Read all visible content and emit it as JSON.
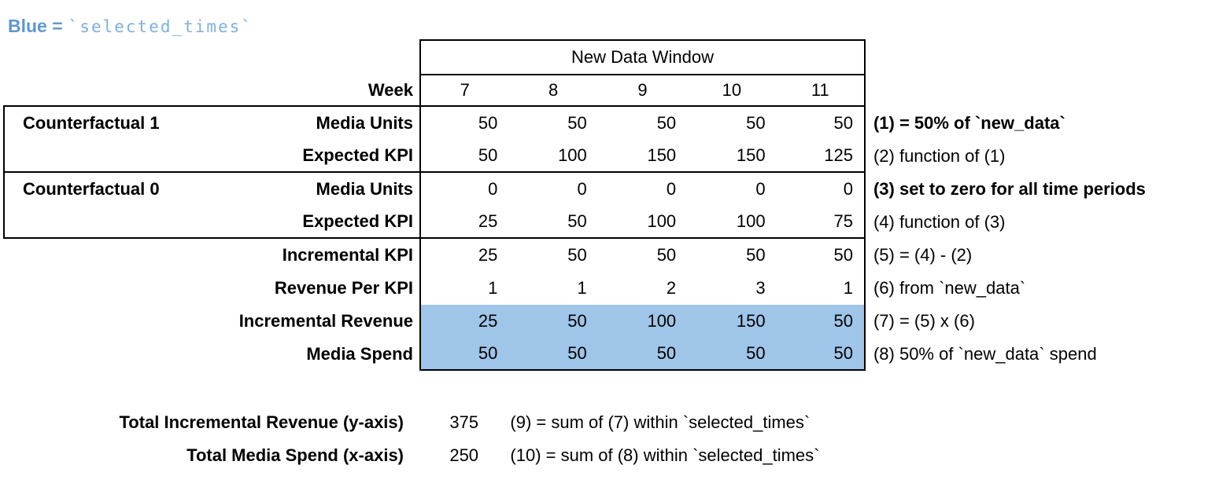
{
  "legend": {
    "prefix": "Blue =",
    "code": "`selected_times`"
  },
  "colors": {
    "highlight": "#9FC5E8",
    "legend_prefix": "#5E97D3",
    "legend_code": "#7FB0DF",
    "border": "#000000"
  },
  "table": {
    "window_header": "New Data Window",
    "week_label": "Week",
    "weeks": [
      "7",
      "8",
      "9",
      "10",
      "11"
    ],
    "rows": [
      {
        "group": "Counterfactual 1",
        "label": "Media Units",
        "values": [
          "50",
          "50",
          "50",
          "50",
          "50"
        ],
        "note": "(1) = 50% of `new_data`",
        "note_bold": true,
        "highlight": false
      },
      {
        "group": "",
        "label": "Expected KPI",
        "values": [
          "50",
          "100",
          "150",
          "150",
          "125"
        ],
        "note": "(2) function of (1)",
        "note_bold": false,
        "highlight": false
      },
      {
        "group": "Counterfactual 0",
        "label": "Media Units",
        "values": [
          "0",
          "0",
          "0",
          "0",
          "0"
        ],
        "note": "(3) set to zero for all time periods",
        "note_bold": true,
        "highlight": false
      },
      {
        "group": "",
        "label": "Expected KPI",
        "values": [
          "25",
          "50",
          "100",
          "100",
          "75"
        ],
        "note": "(4) function of (3)",
        "note_bold": false,
        "highlight": false
      },
      {
        "group": "",
        "label": "Incremental KPI",
        "values": [
          "25",
          "50",
          "50",
          "50",
          "50"
        ],
        "note": "(5) = (4) - (2)",
        "note_bold": false,
        "highlight": false
      },
      {
        "group": "",
        "label": "Revenue Per KPI",
        "values": [
          "1",
          "1",
          "2",
          "3",
          "1"
        ],
        "note": "(6) from `new_data`",
        "note_bold": false,
        "highlight": false
      },
      {
        "group": "",
        "label": "Incremental Revenue",
        "values": [
          "25",
          "50",
          "100",
          "150",
          "50"
        ],
        "note": "(7) = (5) x (6)",
        "note_bold": false,
        "highlight": true
      },
      {
        "group": "",
        "label": "Media Spend",
        "values": [
          "50",
          "50",
          "50",
          "50",
          "50"
        ],
        "note": "(8) 50% of `new_data` spend",
        "note_bold": false,
        "highlight": true
      }
    ],
    "totals": [
      {
        "label": "Total Incremental Revenue (y-axis)",
        "value": "375",
        "note": "(9) = sum of (7) within `selected_times`"
      },
      {
        "label": "Total Media Spend (x-axis)",
        "value": "250",
        "note": "(10) = sum of (8) within `selected_times`"
      }
    ]
  }
}
